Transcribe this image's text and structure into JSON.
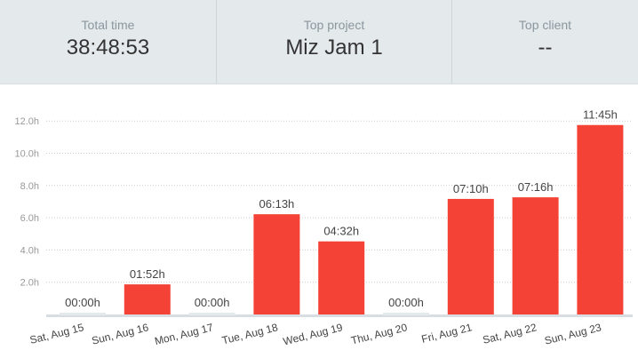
{
  "summary": {
    "total_time_label": "Total time",
    "total_time_value": "38:48:53",
    "top_project_label": "Top project",
    "top_project_value": "Miz Jam 1",
    "top_client_label": "Top client",
    "top_client_value": "--"
  },
  "chart_data": {
    "type": "bar",
    "title": "",
    "xlabel": "",
    "ylabel": "",
    "ylim": [
      0,
      12.9
    ],
    "yticks": [
      2,
      4,
      6,
      8,
      10,
      12
    ],
    "ytick_labels": [
      "2.0h",
      "4.0h",
      "6.0h",
      "8.0h",
      "10.0h",
      "12.0h"
    ],
    "grid": true,
    "categories": [
      "Sat, Aug 15",
      "Sun, Aug 16",
      "Mon, Aug 17",
      "Tue, Aug 18",
      "Wed, Aug 19",
      "Thu, Aug 20",
      "Fri, Aug 21",
      "Sat, Aug 22",
      "Sun, Aug 23"
    ],
    "values": [
      0,
      1.867,
      0,
      6.217,
      4.533,
      0,
      7.167,
      7.267,
      11.75
    ],
    "value_labels": [
      "00:00h",
      "01:52h",
      "00:00h",
      "06:13h",
      "04:32h",
      "00:00h",
      "07:10h",
      "07:16h",
      "11:45h"
    ],
    "colors": {
      "bar": "#f44336",
      "empty_bar": "#e4e9ec",
      "grid": "#cccccc",
      "axis": "#d7dde1",
      "tick_text": "#999999",
      "value_text": "#444444"
    }
  }
}
